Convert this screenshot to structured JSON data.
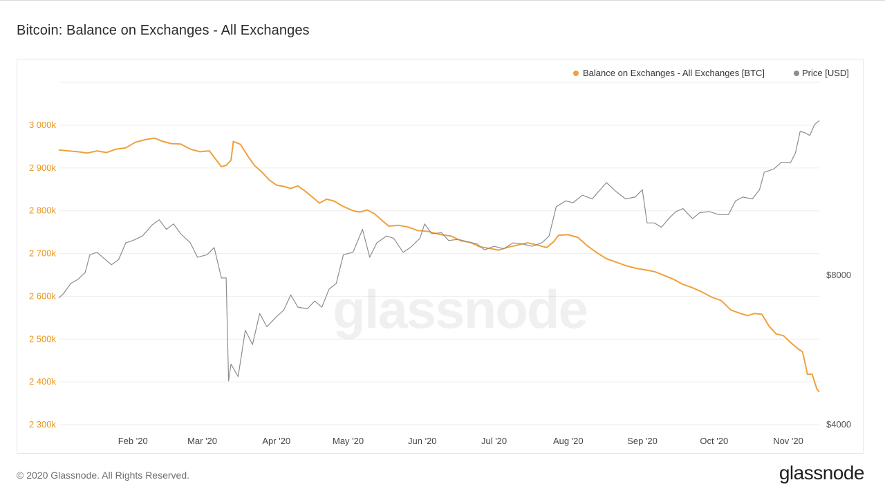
{
  "title": "Bitcoin: Balance on Exchanges - All Exchanges",
  "footer": {
    "copyright": "© 2020 Glassnode. All Rights Reserved.",
    "logo": "glassnode"
  },
  "watermark": "glassnode",
  "colors": {
    "balance": "#f0a03c",
    "price": "#8c8c8c",
    "grid": "#eeeeee"
  },
  "chart_data": {
    "type": "line",
    "title": "Bitcoin: Balance on Exchanges - All Exchanges",
    "legend_position": "top-right",
    "grid": true,
    "x_ticks": [
      "Feb '20",
      "Mar '20",
      "Apr '20",
      "May '20",
      "Jun '20",
      "Jul '20",
      "Aug '20",
      "Sep '20",
      "Oct '20",
      "Nov '20"
    ],
    "x_tick_dates": [
      "2020-02-01",
      "2020-03-01",
      "2020-04-01",
      "2020-05-01",
      "2020-06-01",
      "2020-07-01",
      "2020-08-01",
      "2020-09-01",
      "2020-10-01",
      "2020-11-01"
    ],
    "x_range": [
      "2020-01-01",
      "2020-11-14"
    ],
    "y_left": {
      "ticks": [
        "2 300k",
        "2 400k",
        "2 500k",
        "2 600k",
        "2 700k",
        "2 800k",
        "2 900k",
        "3 000k"
      ],
      "tick_values": [
        2300000,
        2400000,
        2500000,
        2600000,
        2700000,
        2800000,
        2900000,
        3000000
      ],
      "range": [
        2300000,
        3000000
      ]
    },
    "y_right": {
      "scale": "log",
      "ticks": [
        "$4000",
        "$8000"
      ],
      "tick_values": [
        4000,
        8000
      ]
    },
    "series": [
      {
        "name": "Balance on Exchanges - All Exchanges [BTC]",
        "axis": "left",
        "color": "#f0a03c",
        "points": [
          [
            "2020-01-01",
            2942000
          ],
          [
            "2020-01-05",
            2940000
          ],
          [
            "2020-01-09",
            2938000
          ],
          [
            "2020-01-13",
            2935000
          ],
          [
            "2020-01-17",
            2940000
          ],
          [
            "2020-01-21",
            2936000
          ],
          [
            "2020-01-25",
            2944000
          ],
          [
            "2020-01-29",
            2947000
          ],
          [
            "2020-02-02",
            2960000
          ],
          [
            "2020-02-06",
            2966000
          ],
          [
            "2020-02-10",
            2970000
          ],
          [
            "2020-02-13",
            2963000
          ],
          [
            "2020-02-17",
            2957000
          ],
          [
            "2020-02-21",
            2956000
          ],
          [
            "2020-02-25",
            2944000
          ],
          [
            "2020-02-29",
            2938000
          ],
          [
            "2020-03-04",
            2940000
          ],
          [
            "2020-03-06",
            2925000
          ],
          [
            "2020-03-09",
            2903000
          ],
          [
            "2020-03-11",
            2906000
          ],
          [
            "2020-03-13",
            2918000
          ],
          [
            "2020-03-14",
            2962000
          ],
          [
            "2020-03-17",
            2955000
          ],
          [
            "2020-03-20",
            2928000
          ],
          [
            "2020-03-23",
            2905000
          ],
          [
            "2020-03-26",
            2890000
          ],
          [
            "2020-03-29",
            2872000
          ],
          [
            "2020-04-01",
            2860000
          ],
          [
            "2020-04-04",
            2857000
          ],
          [
            "2020-04-07",
            2852000
          ],
          [
            "2020-04-10",
            2858000
          ],
          [
            "2020-04-13",
            2846000
          ],
          [
            "2020-04-16",
            2832000
          ],
          [
            "2020-04-19",
            2818000
          ],
          [
            "2020-04-22",
            2827000
          ],
          [
            "2020-04-25",
            2823000
          ],
          [
            "2020-04-29",
            2810000
          ],
          [
            "2020-05-03",
            2800000
          ],
          [
            "2020-05-06",
            2797000
          ],
          [
            "2020-05-09",
            2802000
          ],
          [
            "2020-05-12",
            2793000
          ],
          [
            "2020-05-15",
            2778000
          ],
          [
            "2020-05-18",
            2764000
          ],
          [
            "2020-05-22",
            2766000
          ],
          [
            "2020-05-26",
            2762000
          ],
          [
            "2020-05-30",
            2754000
          ],
          [
            "2020-06-03",
            2752000
          ],
          [
            "2020-06-06",
            2748000
          ],
          [
            "2020-06-09",
            2744000
          ],
          [
            "2020-06-13",
            2741000
          ],
          [
            "2020-06-17",
            2730000
          ],
          [
            "2020-06-21",
            2726000
          ],
          [
            "2020-06-25",
            2716000
          ],
          [
            "2020-06-29",
            2712000
          ],
          [
            "2020-07-03",
            2708000
          ],
          [
            "2020-07-07",
            2715000
          ],
          [
            "2020-07-11",
            2720000
          ],
          [
            "2020-07-15",
            2725000
          ],
          [
            "2020-07-19",
            2720000
          ],
          [
            "2020-07-23",
            2714000
          ],
          [
            "2020-07-26",
            2728000
          ],
          [
            "2020-07-28",
            2743000
          ],
          [
            "2020-08-01",
            2744000
          ],
          [
            "2020-08-05",
            2738000
          ],
          [
            "2020-08-09",
            2718000
          ],
          [
            "2020-08-13",
            2702000
          ],
          [
            "2020-08-17",
            2688000
          ],
          [
            "2020-08-21",
            2680000
          ],
          [
            "2020-08-25",
            2672000
          ],
          [
            "2020-08-29",
            2666000
          ],
          [
            "2020-09-02",
            2662000
          ],
          [
            "2020-09-06",
            2658000
          ],
          [
            "2020-09-10",
            2649000
          ],
          [
            "2020-09-14",
            2640000
          ],
          [
            "2020-09-18",
            2628000
          ],
          [
            "2020-09-22",
            2620000
          ],
          [
            "2020-09-26",
            2610000
          ],
          [
            "2020-09-30",
            2598000
          ],
          [
            "2020-10-04",
            2590000
          ],
          [
            "2020-10-08",
            2568000
          ],
          [
            "2020-10-12",
            2560000
          ],
          [
            "2020-10-15",
            2555000
          ],
          [
            "2020-10-18",
            2560000
          ],
          [
            "2020-10-21",
            2558000
          ],
          [
            "2020-10-24",
            2530000
          ],
          [
            "2020-10-27",
            2512000
          ],
          [
            "2020-10-30",
            2508000
          ],
          [
            "2020-11-02",
            2492000
          ],
          [
            "2020-11-05",
            2478000
          ],
          [
            "2020-11-07",
            2470000
          ],
          [
            "2020-11-08",
            2446000
          ],
          [
            "2020-11-09",
            2418000
          ],
          [
            "2020-11-10",
            2418000
          ],
          [
            "2020-11-11",
            2418000
          ],
          [
            "2020-11-12",
            2400000
          ],
          [
            "2020-11-13",
            2383000
          ],
          [
            "2020-11-14",
            2377000
          ]
        ]
      },
      {
        "name": "Price [USD]",
        "axis": "right",
        "color": "#8c8c8c",
        "points": [
          [
            "2020-01-01",
            7200
          ],
          [
            "2020-01-03",
            7350
          ],
          [
            "2020-01-06",
            7700
          ],
          [
            "2020-01-09",
            7850
          ],
          [
            "2020-01-12",
            8100
          ],
          [
            "2020-01-14",
            8800
          ],
          [
            "2020-01-17",
            8900
          ],
          [
            "2020-01-20",
            8650
          ],
          [
            "2020-01-23",
            8400
          ],
          [
            "2020-01-26",
            8600
          ],
          [
            "2020-01-29",
            9300
          ],
          [
            "2020-02-01",
            9400
          ],
          [
            "2020-02-05",
            9600
          ],
          [
            "2020-02-09",
            10100
          ],
          [
            "2020-02-12",
            10350
          ],
          [
            "2020-02-15",
            9900
          ],
          [
            "2020-02-18",
            10150
          ],
          [
            "2020-02-21",
            9700
          ],
          [
            "2020-02-25",
            9300
          ],
          [
            "2020-02-28",
            8700
          ],
          [
            "2020-03-03",
            8800
          ],
          [
            "2020-03-06",
            9100
          ],
          [
            "2020-03-09",
            7900
          ],
          [
            "2020-03-11",
            7900
          ],
          [
            "2020-03-12",
            4900
          ],
          [
            "2020-03-13",
            5300
          ],
          [
            "2020-03-16",
            5000
          ],
          [
            "2020-03-19",
            6200
          ],
          [
            "2020-03-22",
            5800
          ],
          [
            "2020-03-25",
            6700
          ],
          [
            "2020-03-28",
            6300
          ],
          [
            "2020-04-01",
            6600
          ],
          [
            "2020-04-04",
            6800
          ],
          [
            "2020-04-07",
            7300
          ],
          [
            "2020-04-10",
            6900
          ],
          [
            "2020-04-14",
            6850
          ],
          [
            "2020-04-17",
            7100
          ],
          [
            "2020-04-20",
            6900
          ],
          [
            "2020-04-23",
            7500
          ],
          [
            "2020-04-26",
            7700
          ],
          [
            "2020-04-29",
            8800
          ],
          [
            "2020-05-03",
            8900
          ],
          [
            "2020-05-07",
            9900
          ],
          [
            "2020-05-10",
            8700
          ],
          [
            "2020-05-13",
            9300
          ],
          [
            "2020-05-17",
            9600
          ],
          [
            "2020-05-20",
            9500
          ],
          [
            "2020-05-24",
            8900
          ],
          [
            "2020-05-27",
            9100
          ],
          [
            "2020-05-31",
            9500
          ],
          [
            "2020-06-02",
            10150
          ],
          [
            "2020-06-05",
            9700
          ],
          [
            "2020-06-09",
            9750
          ],
          [
            "2020-06-12",
            9400
          ],
          [
            "2020-06-16",
            9450
          ],
          [
            "2020-06-20",
            9350
          ],
          [
            "2020-06-24",
            9250
          ],
          [
            "2020-06-27",
            9000
          ],
          [
            "2020-07-01",
            9150
          ],
          [
            "2020-07-05",
            9050
          ],
          [
            "2020-07-09",
            9300
          ],
          [
            "2020-07-13",
            9250
          ],
          [
            "2020-07-17",
            9150
          ],
          [
            "2020-07-21",
            9300
          ],
          [
            "2020-07-24",
            9600
          ],
          [
            "2020-07-27",
            11000
          ],
          [
            "2020-07-31",
            11300
          ],
          [
            "2020-08-03",
            11200
          ],
          [
            "2020-08-07",
            11600
          ],
          [
            "2020-08-11",
            11400
          ],
          [
            "2020-08-17",
            12300
          ],
          [
            "2020-08-21",
            11800
          ],
          [
            "2020-08-25",
            11400
          ],
          [
            "2020-08-29",
            11500
          ],
          [
            "2020-09-01",
            11900
          ],
          [
            "2020-09-03",
            10200
          ],
          [
            "2020-09-06",
            10200
          ],
          [
            "2020-09-09",
            10000
          ],
          [
            "2020-09-12",
            10400
          ],
          [
            "2020-09-15",
            10750
          ],
          [
            "2020-09-18",
            10900
          ],
          [
            "2020-09-22",
            10400
          ],
          [
            "2020-09-25",
            10700
          ],
          [
            "2020-09-29",
            10750
          ],
          [
            "2020-10-03",
            10600
          ],
          [
            "2020-10-07",
            10600
          ],
          [
            "2020-10-10",
            11300
          ],
          [
            "2020-10-13",
            11500
          ],
          [
            "2020-10-17",
            11400
          ],
          [
            "2020-10-20",
            11900
          ],
          [
            "2020-10-22",
            12900
          ],
          [
            "2020-10-26",
            13100
          ],
          [
            "2020-10-29",
            13500
          ],
          [
            "2020-11-02",
            13500
          ],
          [
            "2020-11-04",
            14100
          ],
          [
            "2020-11-06",
            15600
          ],
          [
            "2020-11-08",
            15500
          ],
          [
            "2020-11-10",
            15300
          ],
          [
            "2020-11-12",
            16100
          ],
          [
            "2020-11-14",
            16400
          ]
        ]
      }
    ]
  }
}
